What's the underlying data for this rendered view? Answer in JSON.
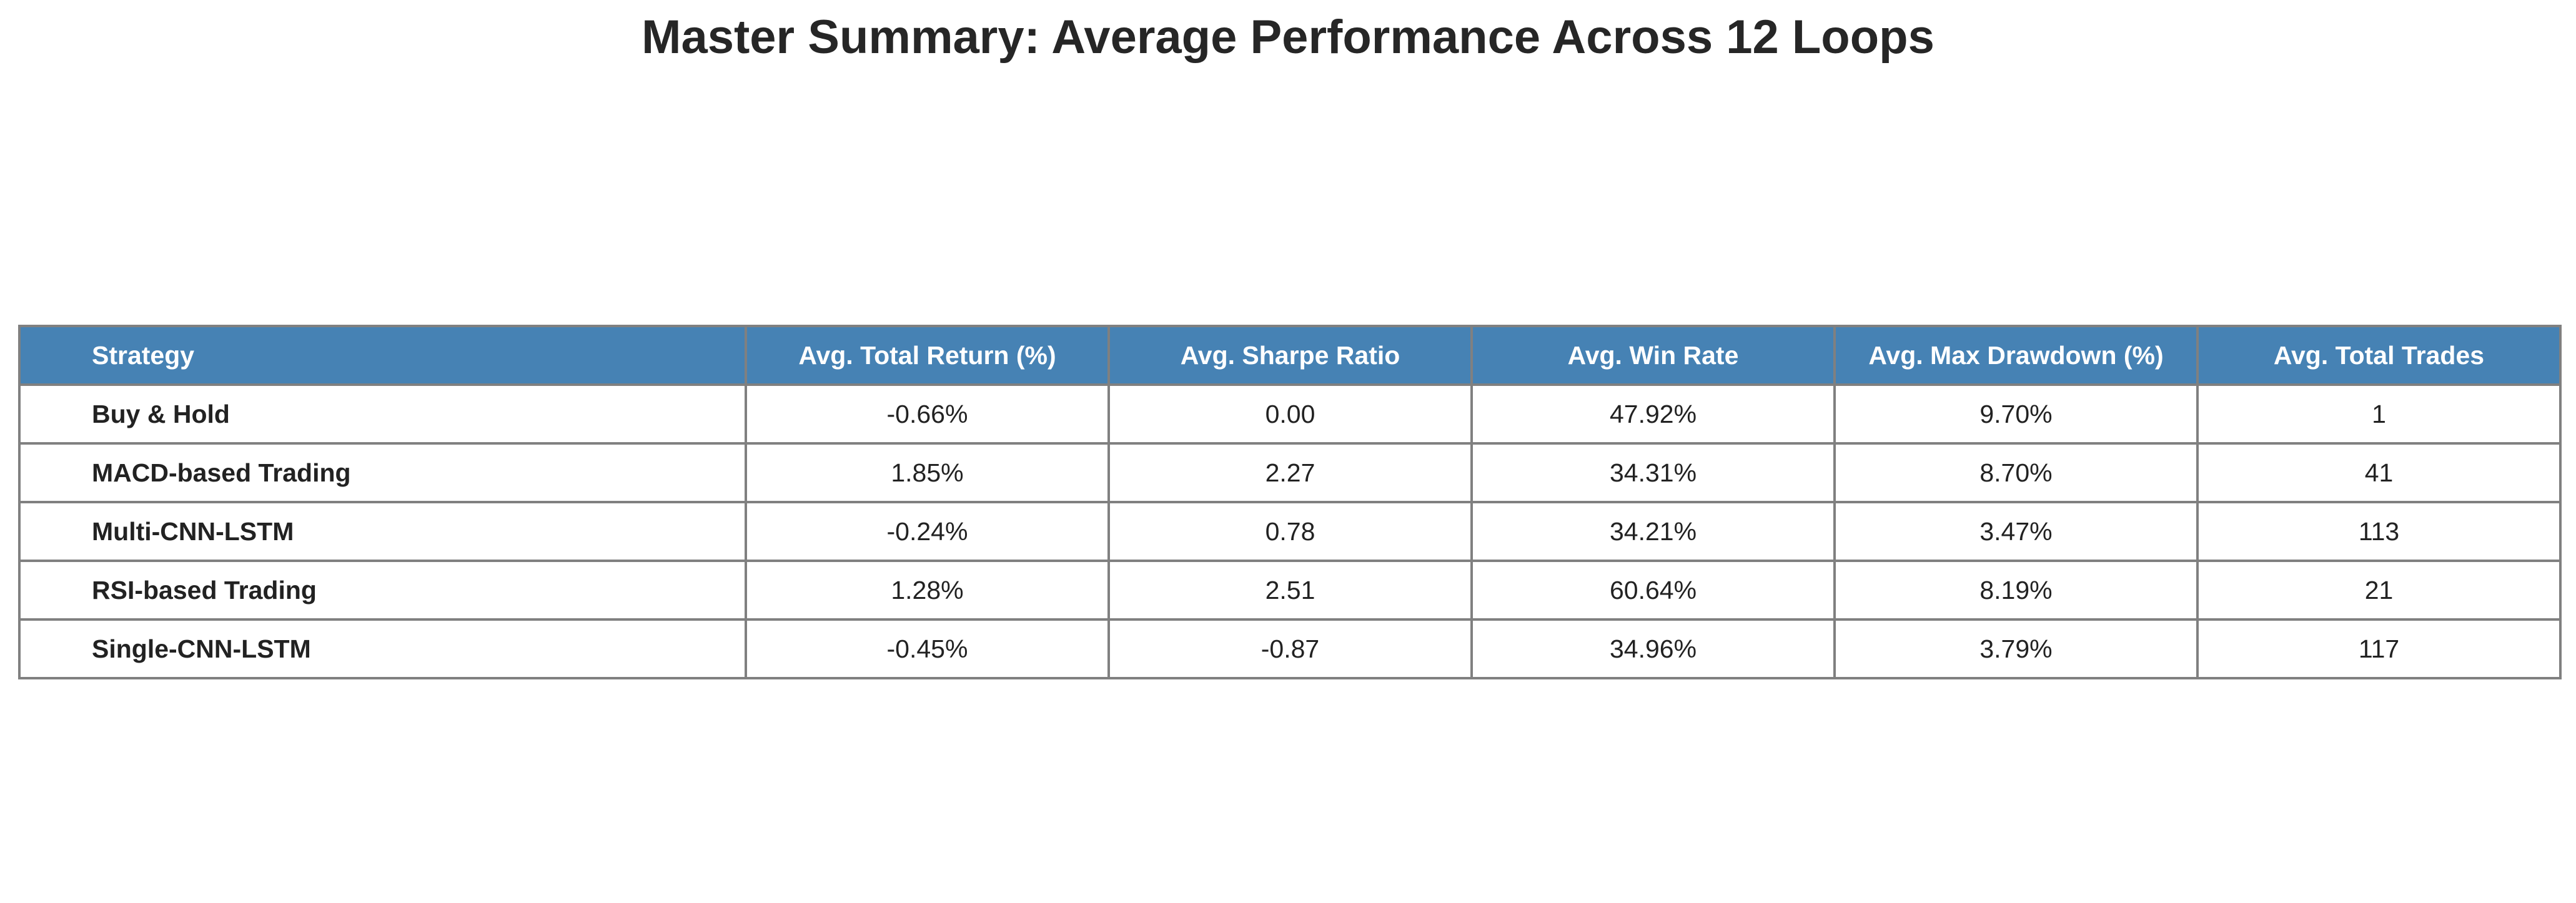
{
  "chart_data": {
    "type": "table",
    "title": "Master Summary: Average Performance Across 12 Loops",
    "header_color": "#4682b4",
    "header_text_color": "#ffffff",
    "border_color": "#808080",
    "columns": [
      "Strategy",
      "Avg. Total Return (%)",
      "Avg. Sharpe Ratio",
      "Avg. Win Rate",
      "Avg. Max Drawdown (%)",
      "Avg. Total Trades"
    ],
    "rows": [
      [
        "Buy & Hold",
        "-0.66%",
        "0.00",
        "47.92%",
        "9.70%",
        "1"
      ],
      [
        "MACD-based Trading",
        "1.85%",
        "2.27",
        "34.31%",
        "8.70%",
        "41"
      ],
      [
        "Multi-CNN-LSTM",
        "-0.24%",
        "0.78",
        "34.21%",
        "3.47%",
        "113"
      ],
      [
        "RSI-based Trading",
        "1.28%",
        "2.51",
        "60.64%",
        "8.19%",
        "21"
      ],
      [
        "Single-CNN-LSTM",
        "-0.45%",
        "-0.87",
        "34.96%",
        "3.79%",
        "117"
      ]
    ]
  }
}
